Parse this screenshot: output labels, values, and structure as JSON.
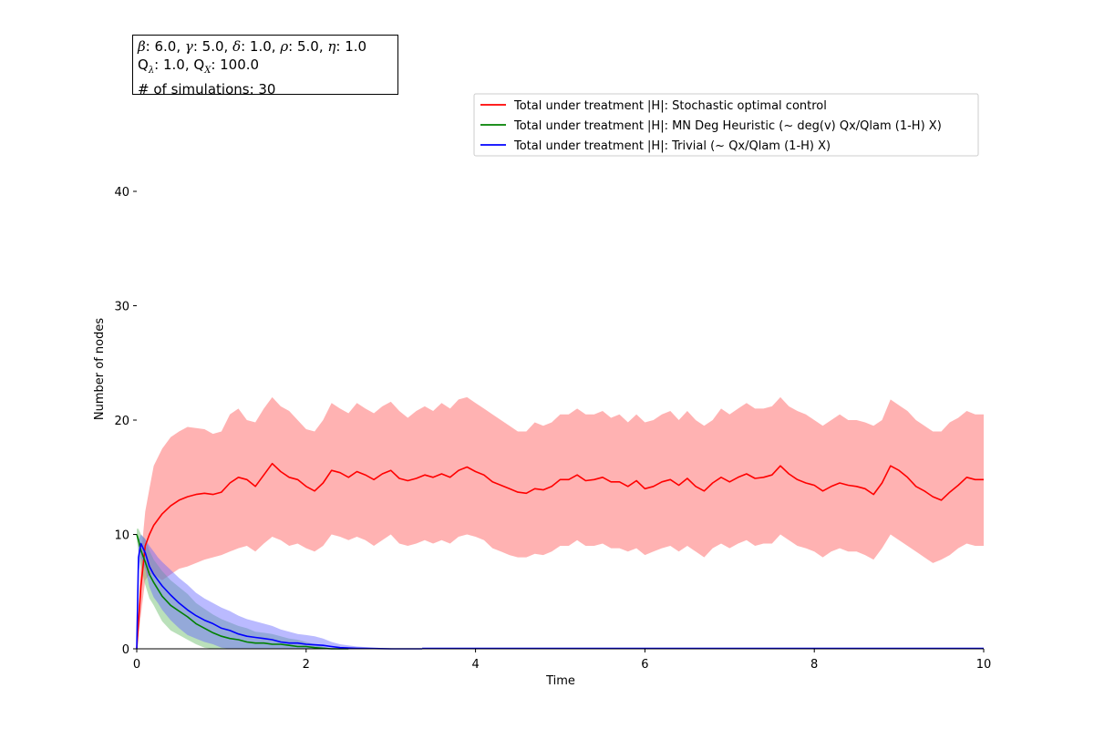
{
  "parameters": {
    "beta_symbol": "β",
    "beta_value": ": 6.0, ",
    "gamma_symbol": "γ",
    "gamma_value": ": 5.0, ",
    "delta_symbol": "δ",
    "delta_value": ": 1.0, ",
    "rho_symbol": "ρ",
    "rho_value": ": 5.0, ",
    "eta_symbol": "η",
    "eta_value": ": 1.0",
    "q_lambda_prefix": "Q",
    "q_lambda_sub": "λ",
    "q_lambda_value": ": 1.0, ",
    "q_x_prefix": "Q",
    "q_x_sub": "X",
    "q_x_value": ": 100.0",
    "simulations": "# of simulations: 30"
  },
  "chart_data": {
    "type": "line",
    "title": "",
    "xlabel": "Time",
    "ylabel": "Number of nodes",
    "xlim": [
      0,
      10
    ],
    "ylim": [
      0,
      45
    ],
    "xticks": [
      0,
      2,
      4,
      6,
      8,
      10
    ],
    "yticks": [
      0,
      10,
      20,
      30,
      40
    ],
    "grid": false,
    "legend_position": "top-right",
    "series": [
      {
        "name": "Total under treatment |H|: Stochastic optimal control",
        "color": "#ff0000",
        "band_color": "#ff6666",
        "x": [
          0,
          0.05,
          0.1,
          0.15,
          0.2,
          0.3,
          0.4,
          0.5,
          0.6,
          0.7,
          0.8,
          0.9,
          1.0,
          1.1,
          1.2,
          1.3,
          1.4,
          1.5,
          1.6,
          1.7,
          1.8,
          1.9,
          2.0,
          2.1,
          2.2,
          2.3,
          2.4,
          2.5,
          2.6,
          2.7,
          2.8,
          2.9,
          3.0,
          3.1,
          3.2,
          3.3,
          3.4,
          3.5,
          3.6,
          3.7,
          3.8,
          3.9,
          4.0,
          4.1,
          4.2,
          4.3,
          4.4,
          4.5,
          4.6,
          4.7,
          4.8,
          4.9,
          5.0,
          5.1,
          5.2,
          5.3,
          5.4,
          5.5,
          5.6,
          5.7,
          5.8,
          5.9,
          6.0,
          6.1,
          6.2,
          6.3,
          6.4,
          6.5,
          6.6,
          6.7,
          6.8,
          6.9,
          7.0,
          7.1,
          7.2,
          7.3,
          7.4,
          7.5,
          7.6,
          7.7,
          7.8,
          7.9,
          8.0,
          8.1,
          8.2,
          8.3,
          8.4,
          8.5,
          8.6,
          8.7,
          8.8,
          8.9,
          9.0,
          9.1,
          9.2,
          9.3,
          9.4,
          9.5,
          9.6,
          9.7,
          9.8,
          9.9,
          10.0
        ],
        "mean": [
          0,
          5.5,
          9.0,
          10.0,
          10.8,
          11.8,
          12.5,
          13.0,
          13.3,
          13.5,
          13.6,
          13.5,
          13.7,
          14.5,
          15.0,
          14.8,
          14.2,
          15.2,
          16.2,
          15.5,
          15.0,
          14.8,
          14.2,
          13.8,
          14.5,
          15.6,
          15.4,
          15.0,
          15.5,
          15.2,
          14.8,
          15.3,
          15.6,
          14.9,
          14.7,
          14.9,
          15.2,
          15.0,
          15.3,
          15.0,
          15.6,
          15.9,
          15.5,
          15.2,
          14.6,
          14.3,
          14.0,
          13.7,
          13.6,
          14.0,
          13.9,
          14.2,
          14.8,
          14.8,
          15.2,
          14.7,
          14.8,
          15.0,
          14.6,
          14.6,
          14.2,
          14.7,
          14.0,
          14.2,
          14.6,
          14.8,
          14.3,
          14.9,
          14.2,
          13.8,
          14.5,
          15.0,
          14.6,
          15.0,
          15.3,
          14.9,
          15.0,
          15.2,
          16.0,
          15.3,
          14.8,
          14.5,
          14.3,
          13.8,
          14.2,
          14.5,
          14.3,
          14.2,
          14.0,
          13.5,
          14.5,
          16.0,
          15.6,
          15.0,
          14.2,
          13.8,
          13.3,
          13.0,
          13.7,
          14.3,
          15.0,
          14.8,
          14.8
        ],
        "upper": [
          0,
          8.0,
          12.0,
          14.0,
          16.0,
          17.5,
          18.5,
          19.0,
          19.4,
          19.3,
          19.2,
          18.8,
          19.0,
          20.5,
          21.0,
          20.0,
          19.8,
          21.0,
          22.0,
          21.2,
          20.8,
          20.0,
          19.2,
          19.0,
          20.0,
          21.5,
          21.0,
          20.6,
          21.5,
          21.0,
          20.6,
          21.2,
          21.6,
          20.8,
          20.2,
          20.8,
          21.2,
          20.8,
          21.5,
          21.0,
          21.8,
          22.0,
          21.5,
          21.0,
          20.5,
          20.0,
          19.5,
          19.0,
          19.0,
          19.8,
          19.5,
          19.8,
          20.5,
          20.5,
          21.0,
          20.5,
          20.5,
          20.8,
          20.2,
          20.5,
          19.8,
          20.5,
          19.8,
          20.0,
          20.5,
          20.8,
          20.0,
          20.8,
          20.0,
          19.5,
          20.0,
          21.0,
          20.5,
          21.0,
          21.5,
          21.0,
          21.0,
          21.2,
          22.0,
          21.2,
          20.8,
          20.5,
          20.0,
          19.5,
          20.0,
          20.5,
          20.0,
          20.0,
          19.8,
          19.5,
          20.0,
          21.8,
          21.3,
          20.8,
          20.0,
          19.5,
          19.0,
          19.0,
          19.8,
          20.2,
          20.8,
          20.5,
          20.5
        ],
        "lower": [
          0,
          3.0,
          6.0,
          6.5,
          6.5,
          6.0,
          6.5,
          7.0,
          7.2,
          7.5,
          7.8,
          8.0,
          8.2,
          8.5,
          8.8,
          9.0,
          8.5,
          9.2,
          9.8,
          9.5,
          9.0,
          9.2,
          8.8,
          8.5,
          9.0,
          10.0,
          9.8,
          9.5,
          9.8,
          9.5,
          9.0,
          9.5,
          10.0,
          9.2,
          9.0,
          9.2,
          9.5,
          9.2,
          9.5,
          9.2,
          9.8,
          10.0,
          9.8,
          9.5,
          8.8,
          8.5,
          8.2,
          8.0,
          8.0,
          8.3,
          8.2,
          8.5,
          9.0,
          9.0,
          9.5,
          9.0,
          9.0,
          9.2,
          8.8,
          8.8,
          8.5,
          8.8,
          8.2,
          8.5,
          8.8,
          9.0,
          8.5,
          9.0,
          8.5,
          8.0,
          8.8,
          9.2,
          8.8,
          9.2,
          9.5,
          9.0,
          9.2,
          9.2,
          10.0,
          9.5,
          9.0,
          8.8,
          8.5,
          8.0,
          8.5,
          8.8,
          8.5,
          8.5,
          8.2,
          7.8,
          8.8,
          10.0,
          9.5,
          9.0,
          8.5,
          8.0,
          7.5,
          7.8,
          8.2,
          8.8,
          9.2,
          9.0,
          9.0
        ]
      },
      {
        "name": "Total under treatment |H|: MN Deg Heuristic (~ deg(v) Qx/Qlam (1-H) X)",
        "color": "#008000",
        "band_color": "#66bb66",
        "x": [
          0,
          0.02,
          0.05,
          0.1,
          0.15,
          0.2,
          0.25,
          0.3,
          0.4,
          0.5,
          0.6,
          0.7,
          0.8,
          0.9,
          1.0,
          1.1,
          1.2,
          1.3,
          1.4,
          1.5,
          1.6,
          1.7,
          1.8,
          1.9,
          2.0,
          2.1,
          2.2,
          2.3,
          2.5
        ],
        "mean": [
          10.0,
          9.5,
          8.6,
          7.6,
          6.5,
          5.8,
          5.2,
          4.6,
          3.8,
          3.3,
          2.8,
          2.2,
          1.8,
          1.4,
          1.1,
          0.9,
          0.8,
          0.6,
          0.5,
          0.5,
          0.4,
          0.4,
          0.3,
          0.2,
          0.2,
          0.1,
          0.05,
          0,
          0
        ],
        "upper": [
          10.5,
          10.5,
          10.0,
          9.6,
          8.6,
          7.8,
          7.3,
          6.8,
          6.0,
          5.4,
          4.8,
          4.0,
          3.5,
          3.0,
          2.6,
          2.3,
          2.0,
          1.8,
          1.5,
          1.4,
          1.3,
          1.1,
          0.9,
          0.8,
          0.6,
          0.4,
          0.2,
          0,
          0
        ],
        "lower": [
          9.5,
          8.5,
          7.2,
          5.6,
          4.4,
          3.8,
          3.1,
          2.4,
          1.6,
          1.2,
          0.8,
          0.4,
          0.1,
          0,
          0,
          0,
          0,
          0,
          0,
          0,
          0,
          0,
          0,
          0,
          0,
          0,
          0,
          0,
          0
        ]
      },
      {
        "name": "Total under treatment |H|: Trivial (~ Qx/Qlam (1-H) X)",
        "color": "#0000ff",
        "band_color": "#6666ff",
        "x": [
          0,
          0.02,
          0.05,
          0.1,
          0.15,
          0.2,
          0.25,
          0.3,
          0.4,
          0.5,
          0.6,
          0.7,
          0.8,
          0.9,
          1.0,
          1.1,
          1.2,
          1.3,
          1.4,
          1.5,
          1.6,
          1.7,
          1.8,
          1.9,
          2.0,
          2.1,
          2.2,
          2.3,
          2.4,
          2.6,
          2.8,
          3.0,
          3.2,
          3.37
        ],
        "mean": [
          0,
          8.0,
          9.2,
          8.4,
          7.2,
          6.5,
          6.0,
          5.5,
          4.7,
          4.0,
          3.4,
          2.9,
          2.5,
          2.2,
          1.8,
          1.6,
          1.3,
          1.1,
          1.0,
          0.9,
          0.8,
          0.6,
          0.5,
          0.5,
          0.4,
          0.35,
          0.3,
          0.2,
          0.1,
          0.05,
          0.02,
          0,
          0,
          0
        ],
        "upper": [
          0,
          9.5,
          10.0,
          9.6,
          9.0,
          8.5,
          8.0,
          7.6,
          6.9,
          6.2,
          5.6,
          4.9,
          4.4,
          4.0,
          3.6,
          3.3,
          2.9,
          2.6,
          2.4,
          2.2,
          2.0,
          1.7,
          1.5,
          1.3,
          1.2,
          1.1,
          0.9,
          0.6,
          0.4,
          0.2,
          0.1,
          0.05,
          0,
          0
        ],
        "lower": [
          0,
          6.5,
          8.0,
          7.0,
          5.4,
          4.5,
          4.0,
          3.4,
          2.5,
          1.8,
          1.2,
          0.9,
          0.6,
          0.4,
          0.1,
          0,
          0,
          0,
          0,
          0,
          0,
          0,
          0,
          0,
          0,
          0,
          0,
          0,
          0,
          0,
          0,
          0,
          0,
          0
        ]
      }
    ]
  }
}
